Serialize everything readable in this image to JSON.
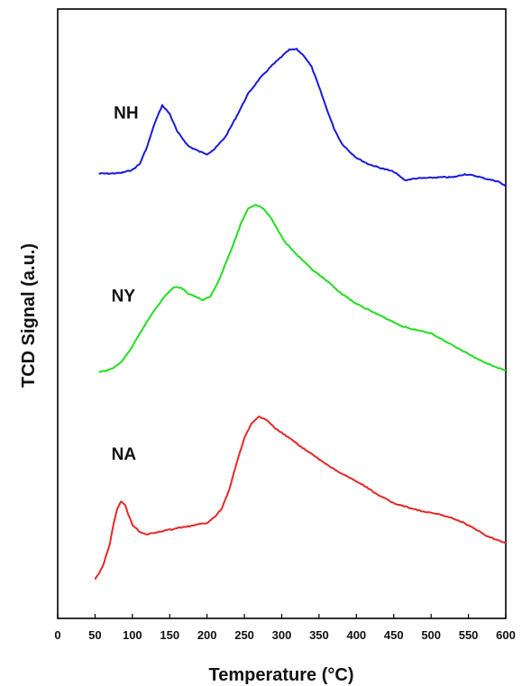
{
  "chart_data": {
    "type": "line",
    "xlabel": "Temperature (°C)",
    "ylabel": "TCD Signal (a.u.)",
    "xlim": [
      0,
      600
    ],
    "ylim": [
      0,
      100
    ],
    "x_ticks": [
      0,
      50,
      100,
      150,
      200,
      250,
      300,
      350,
      400,
      450,
      500,
      550,
      600
    ],
    "y_ticks_shown": false,
    "grid": false,
    "legend": "none",
    "series": [
      {
        "name": "NH",
        "color": "#1a1adb",
        "points": [
          [
            55,
            73
          ],
          [
            70,
            73
          ],
          [
            85,
            73.1
          ],
          [
            100,
            73.6
          ],
          [
            110,
            74.6
          ],
          [
            120,
            77.5
          ],
          [
            130,
            81.3
          ],
          [
            140,
            84.2
          ],
          [
            150,
            82.8
          ],
          [
            160,
            79.9
          ],
          [
            175,
            77.5
          ],
          [
            190,
            76.6
          ],
          [
            200,
            76.2
          ],
          [
            210,
            77
          ],
          [
            225,
            79.1
          ],
          [
            240,
            82.5
          ],
          [
            255,
            86.1
          ],
          [
            270,
            88.5
          ],
          [
            285,
            90.5
          ],
          [
            300,
            92.2
          ],
          [
            310,
            93.3
          ],
          [
            320,
            93.4
          ],
          [
            330,
            92.3
          ],
          [
            340,
            90.5
          ],
          [
            350,
            87.2
          ],
          [
            360,
            83.7
          ],
          [
            370,
            80.4
          ],
          [
            380,
            78
          ],
          [
            390,
            76.7
          ],
          [
            400,
            75.6
          ],
          [
            415,
            74.6
          ],
          [
            430,
            74
          ],
          [
            450,
            73.3
          ],
          [
            465,
            71.9
          ],
          [
            480,
            72.2
          ],
          [
            500,
            72.3
          ],
          [
            515,
            72.4
          ],
          [
            530,
            72.4
          ],
          [
            545,
            72.9
          ],
          [
            560,
            72.6
          ],
          [
            575,
            72.1
          ],
          [
            590,
            71.7
          ],
          [
            600,
            70.9
          ]
        ]
      },
      {
        "name": "NY",
        "color": "#22dd22",
        "points": [
          [
            55,
            40.4
          ],
          [
            70,
            40.8
          ],
          [
            85,
            42
          ],
          [
            100,
            44.6
          ],
          [
            115,
            47.8
          ],
          [
            130,
            50.7
          ],
          [
            145,
            53.1
          ],
          [
            155,
            54.3
          ],
          [
            165,
            54.3
          ],
          [
            175,
            53.3
          ],
          [
            185,
            52.8
          ],
          [
            195,
            52.2
          ],
          [
            205,
            52.9
          ],
          [
            215,
            55.3
          ],
          [
            225,
            58.3
          ],
          [
            235,
            61.3
          ],
          [
            245,
            64.7
          ],
          [
            255,
            67.3
          ],
          [
            265,
            67.9
          ],
          [
            275,
            67.3
          ],
          [
            285,
            65.8
          ],
          [
            295,
            63.7
          ],
          [
            305,
            61.7
          ],
          [
            320,
            59.7
          ],
          [
            340,
            57.3
          ],
          [
            360,
            55.4
          ],
          [
            380,
            53.3
          ],
          [
            400,
            51.6
          ],
          [
            420,
            50.4
          ],
          [
            440,
            49.2
          ],
          [
            460,
            48
          ],
          [
            480,
            47.3
          ],
          [
            500,
            46.8
          ],
          [
            520,
            45.4
          ],
          [
            540,
            44.1
          ],
          [
            560,
            42.7
          ],
          [
            580,
            41.6
          ],
          [
            600,
            40.6
          ]
        ]
      },
      {
        "name": "NA",
        "color": "#e62828",
        "points": [
          [
            50,
            6.4
          ],
          [
            60,
            8.4
          ],
          [
            70,
            12.3
          ],
          [
            75,
            15.7
          ],
          [
            80,
            18
          ],
          [
            85,
            19.2
          ],
          [
            90,
            18.7
          ],
          [
            95,
            16.9
          ],
          [
            100,
            15.4
          ],
          [
            110,
            14.2
          ],
          [
            120,
            13.8
          ],
          [
            140,
            14.3
          ],
          [
            160,
            14.8
          ],
          [
            180,
            15.2
          ],
          [
            200,
            15.7
          ],
          [
            210,
            16.6
          ],
          [
            220,
            18.1
          ],
          [
            230,
            21.3
          ],
          [
            240,
            25.7
          ],
          [
            250,
            29.6
          ],
          [
            260,
            32.1
          ],
          [
            270,
            33.1
          ],
          [
            280,
            32.5
          ],
          [
            290,
            31.3
          ],
          [
            310,
            29.6
          ],
          [
            330,
            27.8
          ],
          [
            350,
            26.1
          ],
          [
            370,
            24.5
          ],
          [
            390,
            23.1
          ],
          [
            410,
            21.8
          ],
          [
            430,
            20.2
          ],
          [
            450,
            18.9
          ],
          [
            470,
            18.2
          ],
          [
            490,
            17.5
          ],
          [
            510,
            17.1
          ],
          [
            530,
            16.4
          ],
          [
            545,
            15.6
          ],
          [
            560,
            14.6
          ],
          [
            575,
            13.5
          ],
          [
            590,
            12.8
          ],
          [
            600,
            12.3
          ]
        ]
      }
    ],
    "annotations": [
      {
        "text": "NH",
        "x": 75,
        "y": 82
      },
      {
        "text": "NY",
        "x": 72,
        "y": 52
      },
      {
        "text": "NA",
        "x": 72,
        "y": 26
      }
    ]
  }
}
